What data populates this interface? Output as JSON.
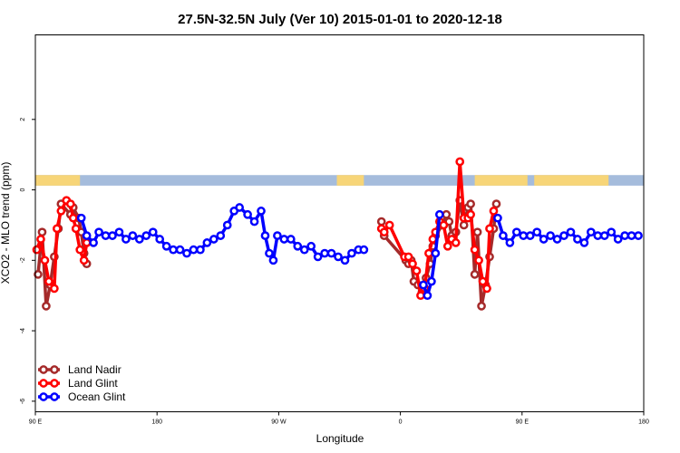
{
  "chart_data": {
    "type": "line",
    "title": "27.5N-32.5N July (Ver 10)   2015-01-01 to 2020-12-18",
    "xlabel": "Longitude",
    "ylabel": "XCO2 - MLO trend (ppm)",
    "xlim": [
      90,
      540
    ],
    "ylim": [
      -6.3,
      4.4
    ],
    "x_ticks": [
      {
        "value": 90,
        "label": "90 E"
      },
      {
        "value": 180,
        "label": "180"
      },
      {
        "value": 270,
        "label": "90 W"
      },
      {
        "value": 360,
        "label": "0"
      },
      {
        "value": 450,
        "label": "90 E"
      },
      {
        "value": 540,
        "label": "180"
      }
    ],
    "y_ticks": [
      {
        "value": -6,
        "label": "-6"
      },
      {
        "value": -4,
        "label": "-4"
      },
      {
        "value": -2,
        "label": "-2"
      },
      {
        "value": 0,
        "label": "0"
      },
      {
        "value": 2,
        "label": "2"
      }
    ],
    "legend_position": "bottom-left",
    "land_ocean_strip": {
      "y_range": [
        0.12,
        0.42
      ],
      "land_color": "#f7d578",
      "ocean_color": "#a5bcdc",
      "land_segments": [
        [
          90,
          123
        ],
        [
          313,
          333
        ],
        [
          415,
          454
        ],
        [
          459,
          514
        ]
      ]
    },
    "series": [
      {
        "name": "Land Nadir",
        "color": "#a52a2a",
        "points": [
          [
            92,
            -2.4
          ],
          [
            95,
            -1.2
          ],
          [
            98,
            -3.3
          ],
          [
            101,
            -2.7
          ],
          [
            104,
            -1.9
          ],
          [
            107,
            -1.1
          ],
          [
            109,
            -0.4
          ],
          [
            116,
            -0.7
          ],
          [
            118,
            -0.5
          ],
          [
            122,
            -0.8
          ],
          [
            124,
            -1.2
          ],
          [
            126,
            -1.8
          ],
          [
            128,
            -2.1
          ],
          [
            346,
            -0.9
          ],
          [
            348,
            -1.3
          ],
          [
            364,
            -2.0
          ],
          [
            366,
            -2.1
          ],
          [
            368,
            -2.0
          ],
          [
            370,
            -2.6
          ],
          [
            373,
            -2.7
          ],
          [
            376,
            -2.9
          ],
          [
            379,
            -2.5
          ],
          [
            382,
            -2.1
          ],
          [
            384,
            -1.6
          ],
          [
            386,
            -1.3
          ],
          [
            391,
            -1.0
          ],
          [
            394,
            -0.7
          ],
          [
            396,
            -0.9
          ],
          [
            398,
            -1.3
          ],
          [
            401,
            -1.2
          ],
          [
            404,
            -0.3
          ],
          [
            407,
            -1.0
          ],
          [
            410,
            -0.5
          ],
          [
            412,
            -0.4
          ],
          [
            415,
            -2.4
          ],
          [
            417,
            -1.2
          ],
          [
            420,
            -3.3
          ],
          [
            423,
            -2.7
          ],
          [
            426,
            -1.9
          ],
          [
            429,
            -1.1
          ],
          [
            431,
            -0.4
          ]
        ]
      },
      {
        "name": "Land Glint",
        "color": "#ff0000",
        "points": [
          [
            91,
            -1.7
          ],
          [
            94,
            -1.4
          ],
          [
            97,
            -2.0
          ],
          [
            100,
            -2.6
          ],
          [
            104,
            -2.8
          ],
          [
            106,
            -1.1
          ],
          [
            109,
            -0.6
          ],
          [
            113,
            -0.3
          ],
          [
            116,
            -0.4
          ],
          [
            118,
            -0.8
          ],
          [
            120,
            -1.1
          ],
          [
            123,
            -1.7
          ],
          [
            126,
            -2.0
          ],
          [
            128,
            -1.5
          ],
          [
            346,
            -1.1
          ],
          [
            348,
            -1.2
          ],
          [
            352,
            -1.0
          ],
          [
            363,
            -1.9
          ],
          [
            366,
            -1.9
          ],
          [
            369,
            -2.1
          ],
          [
            372,
            -2.3
          ],
          [
            375,
            -3.0
          ],
          [
            378,
            -2.8
          ],
          [
            381,
            -1.8
          ],
          [
            384,
            -1.4
          ],
          [
            386,
            -1.2
          ],
          [
            389,
            -0.9
          ],
          [
            392,
            -1.0
          ],
          [
            395,
            -1.6
          ],
          [
            398,
            -1.4
          ],
          [
            401,
            -1.5
          ],
          [
            404,
            0.8
          ],
          [
            407,
            -0.8
          ],
          [
            410,
            -0.8
          ],
          [
            412,
            -0.7
          ],
          [
            415,
            -1.7
          ],
          [
            418,
            -2.0
          ],
          [
            421,
            -2.6
          ],
          [
            424,
            -2.8
          ],
          [
            426,
            -1.1
          ],
          [
            429,
            -0.6
          ]
        ]
      },
      {
        "name": "Ocean Glint",
        "color": "#0000ff",
        "points": [
          [
            124,
            -0.8
          ],
          [
            128,
            -1.3
          ],
          [
            133,
            -1.5
          ],
          [
            137,
            -1.2
          ],
          [
            142,
            -1.3
          ],
          [
            147,
            -1.3
          ],
          [
            152,
            -1.2
          ],
          [
            157,
            -1.4
          ],
          [
            162,
            -1.3
          ],
          [
            167,
            -1.4
          ],
          [
            172,
            -1.3
          ],
          [
            177,
            -1.2
          ],
          [
            182,
            -1.4
          ],
          [
            187,
            -1.6
          ],
          [
            192,
            -1.7
          ],
          [
            197,
            -1.7
          ],
          [
            202,
            -1.8
          ],
          [
            207,
            -1.7
          ],
          [
            212,
            -1.7
          ],
          [
            217,
            -1.5
          ],
          [
            222,
            -1.4
          ],
          [
            227,
            -1.3
          ],
          [
            232,
            -1.0
          ],
          [
            237,
            -0.6
          ],
          [
            241,
            -0.5
          ],
          [
            247,
            -0.7
          ],
          [
            252,
            -0.9
          ],
          [
            257,
            -0.6
          ],
          [
            260,
            -1.3
          ],
          [
            263,
            -1.8
          ],
          [
            266,
            -2.0
          ],
          [
            269,
            -1.3
          ],
          [
            274,
            -1.4
          ],
          [
            279,
            -1.4
          ],
          [
            284,
            -1.6
          ],
          [
            289,
            -1.7
          ],
          [
            294,
            -1.6
          ],
          [
            299,
            -1.9
          ],
          [
            304,
            -1.8
          ],
          [
            309,
            -1.8
          ],
          [
            314,
            -1.9
          ],
          [
            319,
            -2.0
          ],
          [
            324,
            -1.8
          ],
          [
            329,
            -1.7
          ],
          [
            333,
            -1.7
          ],
          [
            377,
            -2.7
          ],
          [
            380,
            -3.0
          ],
          [
            383,
            -2.6
          ],
          [
            386,
            -1.8
          ],
          [
            389,
            -0.7
          ],
          [
            432,
            -0.8
          ],
          [
            436,
            -1.3
          ],
          [
            441,
            -1.5
          ],
          [
            446,
            -1.2
          ],
          [
            451,
            -1.3
          ],
          [
            456,
            -1.3
          ],
          [
            461,
            -1.2
          ],
          [
            466,
            -1.4
          ],
          [
            471,
            -1.3
          ],
          [
            476,
            -1.4
          ],
          [
            481,
            -1.3
          ],
          [
            486,
            -1.2
          ],
          [
            491,
            -1.4
          ],
          [
            496,
            -1.5
          ],
          [
            501,
            -1.2
          ],
          [
            506,
            -1.3
          ],
          [
            511,
            -1.3
          ],
          [
            516,
            -1.2
          ],
          [
            521,
            -1.4
          ],
          [
            526,
            -1.3
          ],
          [
            531,
            -1.3
          ],
          [
            536,
            -1.3
          ]
        ]
      }
    ]
  }
}
